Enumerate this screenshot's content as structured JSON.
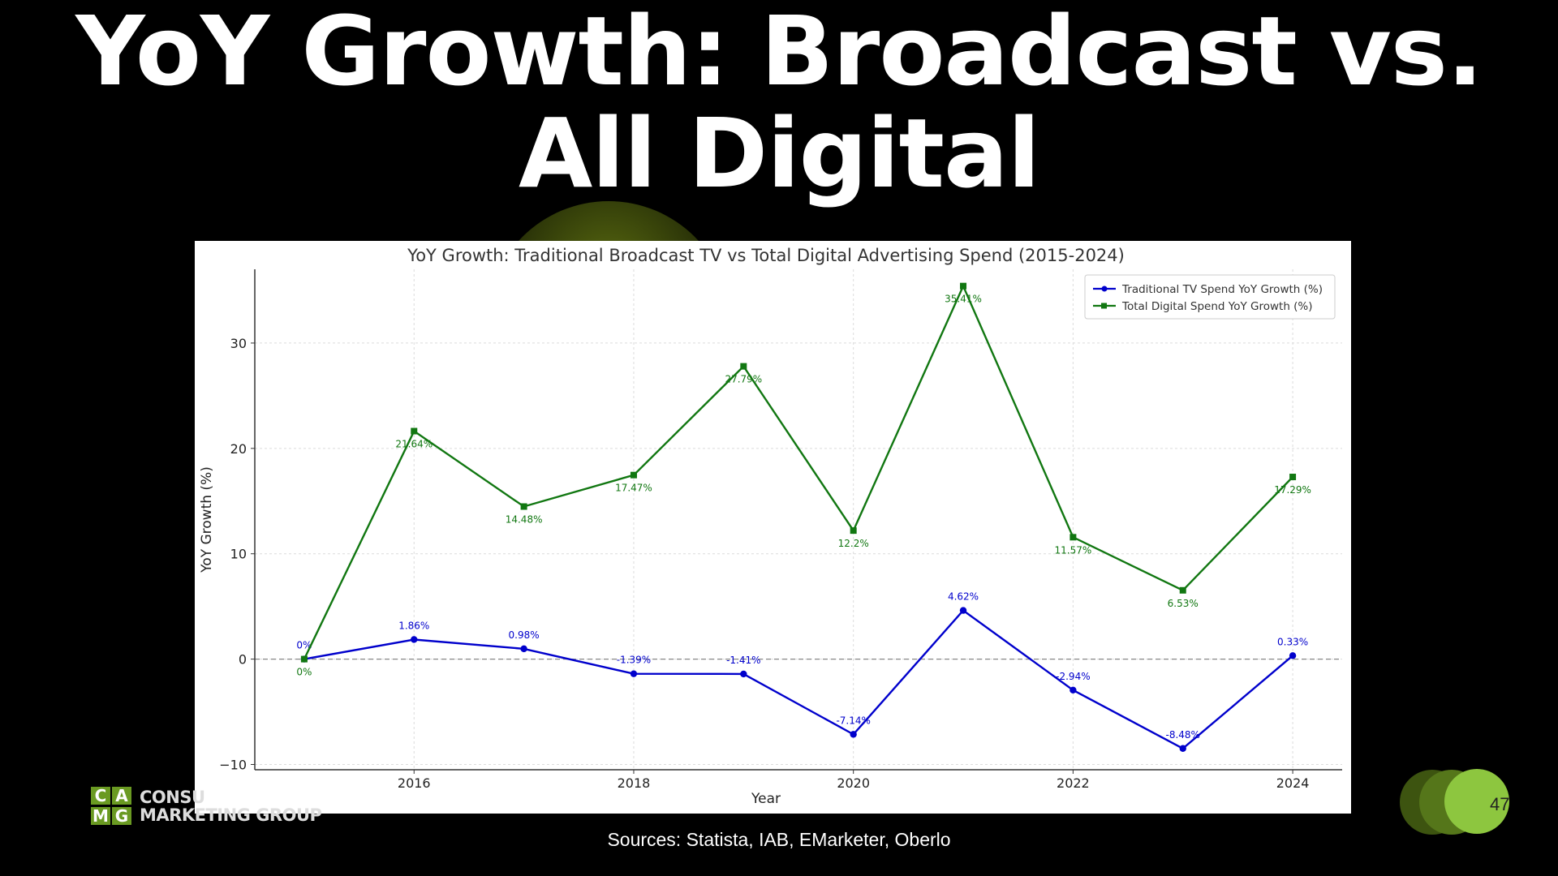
{
  "slide": {
    "title_line1": "YoY Growth: Broadcast vs.",
    "title_line2": "All Digital",
    "sources": "Sources: Statista, IAB, EMarketer, Oberlo",
    "page_number": "47",
    "logo": {
      "letters": [
        "C",
        "A",
        "M",
        "G"
      ],
      "line1": "CONSU",
      "line2": "MARKETING GROUP"
    },
    "colors": {
      "background": "#000000",
      "accent_green": "#8dc63f"
    }
  },
  "chart_data": {
    "type": "line",
    "title": "YoY Growth: Traditional Broadcast TV vs Total Digital Advertising Spend (2015-2024)",
    "xlabel": "Year",
    "ylabel": "YoY Growth (%)",
    "x": [
      2015,
      2016,
      2017,
      2018,
      2019,
      2020,
      2021,
      2022,
      2023,
      2024
    ],
    "xlim": [
      2014.55,
      2024.45
    ],
    "ylim": [
      -10.5,
      37
    ],
    "xticks": [
      2016,
      2018,
      2020,
      2022,
      2024
    ],
    "yticks": [
      -10,
      0,
      10,
      20,
      30
    ],
    "grid": true,
    "legend_position": "top-right",
    "series": [
      {
        "name": "Traditional TV Spend YoY Growth (%)",
        "color": "#0000cc",
        "marker": "circle",
        "values": [
          0,
          1.86,
          0.98,
          -1.39,
          -1.41,
          -7.14,
          4.62,
          -2.94,
          -8.48,
          0.33
        ],
        "labels": [
          "0%",
          "1.86%",
          "0.98%",
          "-1.39%",
          "-1.41%",
          "-7.14%",
          "4.62%",
          "-2.94%",
          "-8.48%",
          "0.33%"
        ]
      },
      {
        "name": "Total Digital Spend YoY Growth (%)",
        "color": "#117711",
        "marker": "square",
        "values": [
          0,
          21.64,
          14.48,
          17.47,
          27.79,
          12.2,
          35.41,
          11.57,
          6.53,
          17.29
        ],
        "labels": [
          "0%",
          "21.64%",
          "14.48%",
          "17.47%",
          "27.79%",
          "12.2%",
          "35.41%",
          "11.57%",
          "6.53%",
          "17.29%"
        ]
      }
    ]
  }
}
